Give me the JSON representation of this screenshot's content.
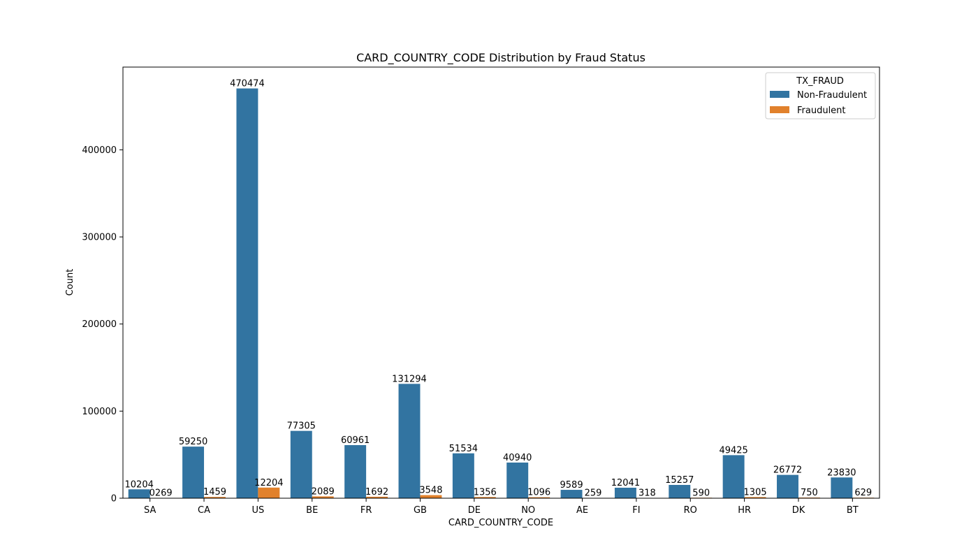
{
  "chart_data": {
    "type": "bar",
    "title": "CARD_COUNTRY_CODE Distribution by Fraud Status",
    "xlabel": "CARD_COUNTRY_CODE",
    "ylabel": "Count",
    "ylim": [
      0,
      495000
    ],
    "yticks": [
      0,
      100000,
      200000,
      300000,
      400000
    ],
    "ytick_labels": [
      "0",
      "100000",
      "200000",
      "300000",
      "400000"
    ],
    "categories": [
      "SA",
      "CA",
      "US",
      "BE",
      "FR",
      "GB",
      "DE",
      "NO",
      "AE",
      "FI",
      "RO",
      "HR",
      "DK",
      "BT"
    ],
    "series": [
      {
        "name": "Non-Fraudulent",
        "color": "#3274a1",
        "values": [
          10204,
          59250,
          470474,
          77305,
          60961,
          131294,
          51534,
          40940,
          9589,
          12041,
          15257,
          49425,
          26772,
          23830
        ],
        "labels": [
          "10204",
          "59250",
          "470474",
          "77305",
          "60961",
          "131294",
          "51534",
          "40940",
          "9589",
          "12041",
          "15257",
          "49425",
          "26772",
          "23830"
        ]
      },
      {
        "name": "Fraudulent",
        "color": "#e1812c",
        "values": [
          269,
          1459,
          12204,
          2089,
          1692,
          3548,
          1356,
          1096,
          259,
          318,
          590,
          1305,
          750,
          629
        ],
        "labels": [
          "0269",
          "1459",
          "12204",
          "2089",
          "1692",
          "3548",
          "1356",
          "1096",
          "259",
          "318",
          "590",
          "1305",
          "750",
          "629"
        ]
      }
    ],
    "legend": {
      "title": "TX_FRAUD",
      "position": "top-right"
    },
    "grid": false
  }
}
